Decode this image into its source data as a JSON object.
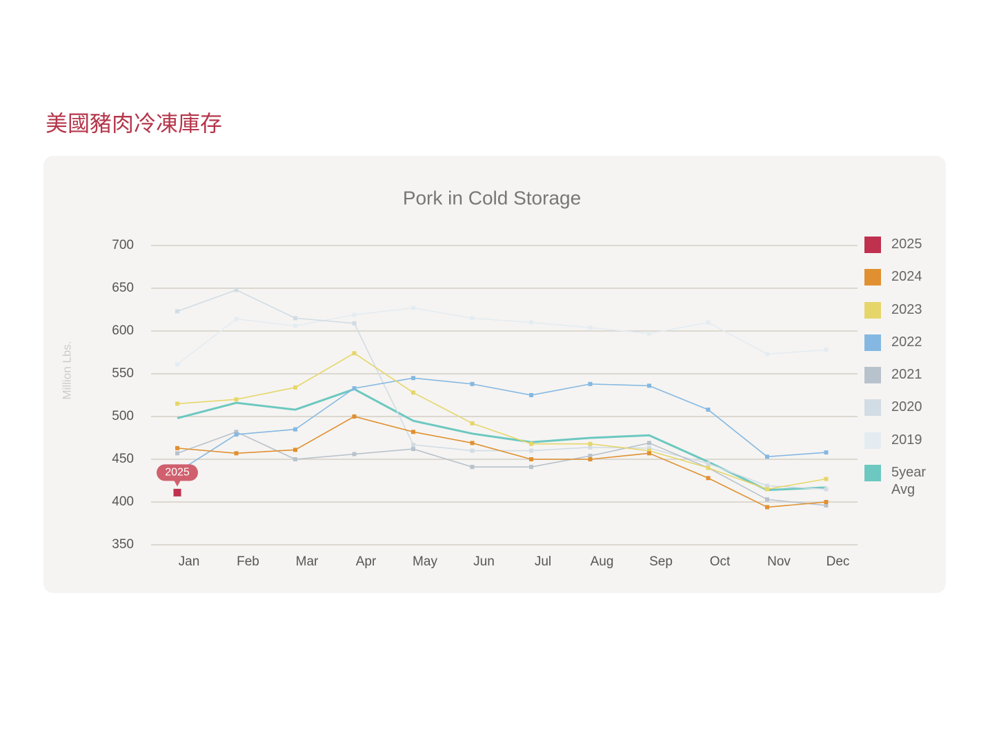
{
  "page_title": "美國豬肉冷凍庫存",
  "chart_data": {
    "type": "line",
    "title": "Pork in Cold Storage",
    "y_label": "Million Lbs.",
    "categories": [
      "Jan",
      "Feb",
      "Mar",
      "Apr",
      "May",
      "Jun",
      "Jul",
      "Aug",
      "Sep",
      "Oct",
      "Nov",
      "Dec"
    ],
    "ylim": [
      350,
      700
    ],
    "yticks": [
      350,
      400,
      450,
      500,
      550,
      600,
      650,
      700
    ],
    "grid": true,
    "legend": "right",
    "series": [
      {
        "name": "2025",
        "color": "#c0304f",
        "values": [
          411,
          null,
          null,
          null,
          null,
          null,
          null,
          null,
          null,
          null,
          null,
          null
        ]
      },
      {
        "name": "2024",
        "color": "#e09030",
        "values": [
          463,
          457,
          461,
          500,
          482,
          469,
          450,
          450,
          457,
          428,
          394,
          400
        ]
      },
      {
        "name": "2023",
        "color": "#e6d66a",
        "values": [
          515,
          520,
          534,
          574,
          528,
          492,
          468,
          468,
          460,
          440,
          415,
          427
        ]
      },
      {
        "name": "2022",
        "color": "#84b8e2",
        "values": [
          435,
          479,
          485,
          533,
          545,
          538,
          525,
          538,
          536,
          508,
          453,
          458
        ]
      },
      {
        "name": "2021",
        "color": "#b8c2cc",
        "values": [
          457,
          482,
          450,
          456,
          462,
          441,
          441,
          454,
          469,
          440,
          403,
          396
        ]
      },
      {
        "name": "2020",
        "color": "#d2dce4",
        "values": [
          623,
          648,
          615,
          609,
          467,
          460,
          460,
          464,
          463,
          445,
          419,
          415
        ]
      },
      {
        "name": "2019",
        "color": "#e4ecf2",
        "values": [
          561,
          614,
          606,
          619,
          627,
          615,
          610,
          604,
          597,
          610,
          573,
          578
        ]
      },
      {
        "name": "5year Avg",
        "color": "#6cc8c0",
        "values": [
          498,
          516,
          508,
          532,
          495,
          480,
          470,
          475,
          478,
          447,
          414,
          417
        ]
      }
    ]
  }
}
